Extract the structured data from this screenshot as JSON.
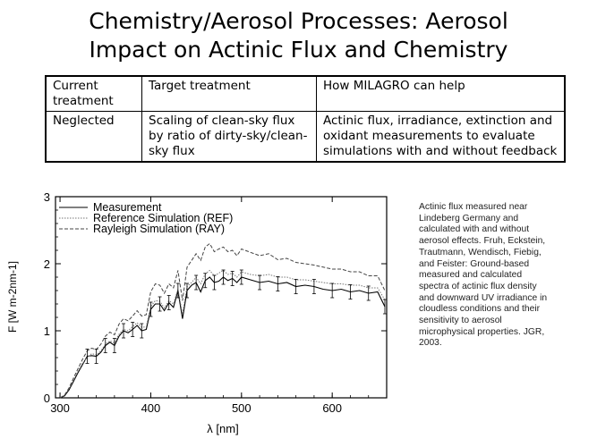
{
  "slide": {
    "title_line1": "Chemistry/Aerosol Processes: Aerosol",
    "title_line2": "Impact on Actinic Flux and Chemistry"
  },
  "table": {
    "headers": [
      "Current treatment",
      "Target treatment",
      "How MILAGRO can help"
    ],
    "row": [
      "Neglected",
      "Scaling of clean-sky flux by ratio of dirty-sky/clean-sky flux",
      "Actinic flux, irradiance,  extinction and oxidant measurements to evaluate simulations with and without feedback"
    ]
  },
  "caption": "Actinic flux measured near Lindeberg Germany and calculated with and without aerosol effects. Fruh, Eckstein, Trautmann, Wendisch, Fiebig, and Feister: Ground-based measured and calculated spectra of actinic flux density and downward UV irradiance in cloudless conditions and their sensitivity to aerosol microphysical properties. JGR, 2003.",
  "chart_data": {
    "type": "line",
    "xlabel": "λ [nm]",
    "ylabel": "F [W m-2nm-1]",
    "xlim": [
      295,
      660
    ],
    "ylim": [
      0,
      3
    ],
    "x_ticks": [
      "300",
      "400",
      "500",
      "600"
    ],
    "y_ticks": [
      "0",
      "1",
      "2",
      "3"
    ],
    "legend": [
      "Measurement",
      "Reference Simulation (REF)",
      "Rayleigh Simulation (RAY)"
    ],
    "x": [
      300,
      305,
      310,
      315,
      320,
      325,
      330,
      335,
      340,
      345,
      350,
      355,
      360,
      365,
      370,
      375,
      380,
      385,
      390,
      395,
      400,
      405,
      410,
      415,
      420,
      425,
      430,
      435,
      440,
      445,
      450,
      455,
      460,
      465,
      470,
      475,
      480,
      485,
      490,
      495,
      500,
      510,
      520,
      530,
      540,
      550,
      560,
      570,
      580,
      590,
      600,
      610,
      620,
      630,
      640,
      650,
      658
    ],
    "series": [
      {
        "name": "Measurement",
        "values": [
          0.0,
          0.03,
          0.12,
          0.25,
          0.38,
          0.5,
          0.62,
          0.63,
          0.62,
          0.68,
          0.78,
          0.83,
          0.78,
          0.92,
          1.0,
          0.97,
          1.02,
          1.08,
          1.0,
          1.02,
          1.32,
          1.4,
          1.4,
          1.3,
          1.42,
          1.35,
          1.6,
          1.18,
          1.6,
          1.68,
          1.72,
          1.58,
          1.75,
          1.8,
          1.72,
          1.74,
          1.8,
          1.75,
          1.78,
          1.72,
          1.8,
          1.76,
          1.72,
          1.74,
          1.7,
          1.72,
          1.66,
          1.68,
          1.66,
          1.62,
          1.6,
          1.62,
          1.58,
          1.6,
          1.56,
          1.58,
          1.36
        ]
      },
      {
        "name": "Reference Simulation (REF)",
        "values": [
          0.0,
          0.04,
          0.14,
          0.27,
          0.4,
          0.52,
          0.6,
          0.66,
          0.64,
          0.7,
          0.8,
          0.85,
          0.82,
          0.95,
          1.02,
          1.0,
          1.06,
          1.12,
          1.05,
          1.06,
          1.36,
          1.45,
          1.44,
          1.34,
          1.45,
          1.4,
          1.62,
          1.25,
          1.66,
          1.72,
          1.8,
          1.7,
          1.85,
          1.9,
          1.82,
          1.86,
          1.9,
          1.84,
          1.86,
          1.8,
          1.88,
          1.84,
          1.82,
          1.84,
          1.8,
          1.8,
          1.76,
          1.76,
          1.74,
          1.72,
          1.7,
          1.7,
          1.68,
          1.68,
          1.64,
          1.64,
          1.46
        ]
      },
      {
        "name": "Rayleigh Simulation (RAY)",
        "values": [
          0.0,
          0.04,
          0.15,
          0.3,
          0.44,
          0.58,
          0.7,
          0.74,
          0.72,
          0.8,
          0.92,
          0.98,
          0.94,
          1.1,
          1.18,
          1.15,
          1.22,
          1.3,
          1.22,
          1.24,
          1.58,
          1.7,
          1.68,
          1.56,
          1.7,
          1.64,
          1.9,
          1.45,
          1.95,
          2.05,
          2.15,
          2.05,
          2.25,
          2.3,
          2.18,
          2.22,
          2.25,
          2.18,
          2.2,
          2.12,
          2.22,
          2.17,
          2.12,
          2.15,
          2.06,
          2.08,
          2.02,
          2.0,
          1.98,
          1.95,
          1.92,
          1.92,
          1.88,
          1.88,
          1.82,
          1.82,
          1.6
        ]
      }
    ]
  }
}
